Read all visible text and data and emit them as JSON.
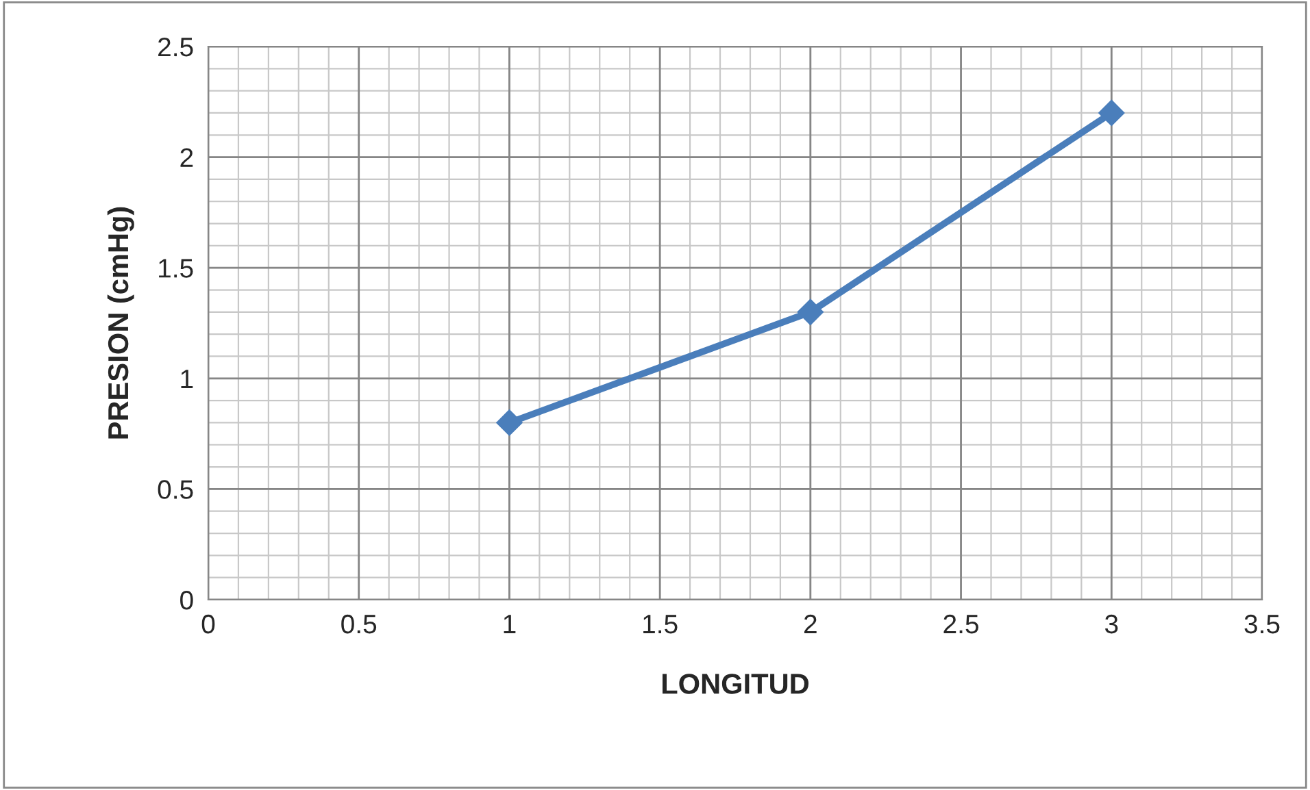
{
  "chart_data": {
    "type": "line",
    "xlabel": "LONGITUD",
    "ylabel": "PRESION (cmHg)",
    "x": [
      1,
      2,
      3
    ],
    "series": [
      {
        "color": "#4a7ebb",
        "values": [
          0.8,
          1.3,
          2.2
        ]
      }
    ],
    "xlim": [
      0,
      3.5
    ],
    "xticks": [
      0,
      0.5,
      1,
      1.5,
      2,
      2.5,
      3,
      3.5
    ],
    "ylim": [
      0,
      2.5
    ],
    "yticks": [
      0,
      0.5,
      1,
      1.5,
      2,
      2.5
    ],
    "grid": true,
    "marker": "diamond",
    "line_style": "solid",
    "legend": false
  }
}
